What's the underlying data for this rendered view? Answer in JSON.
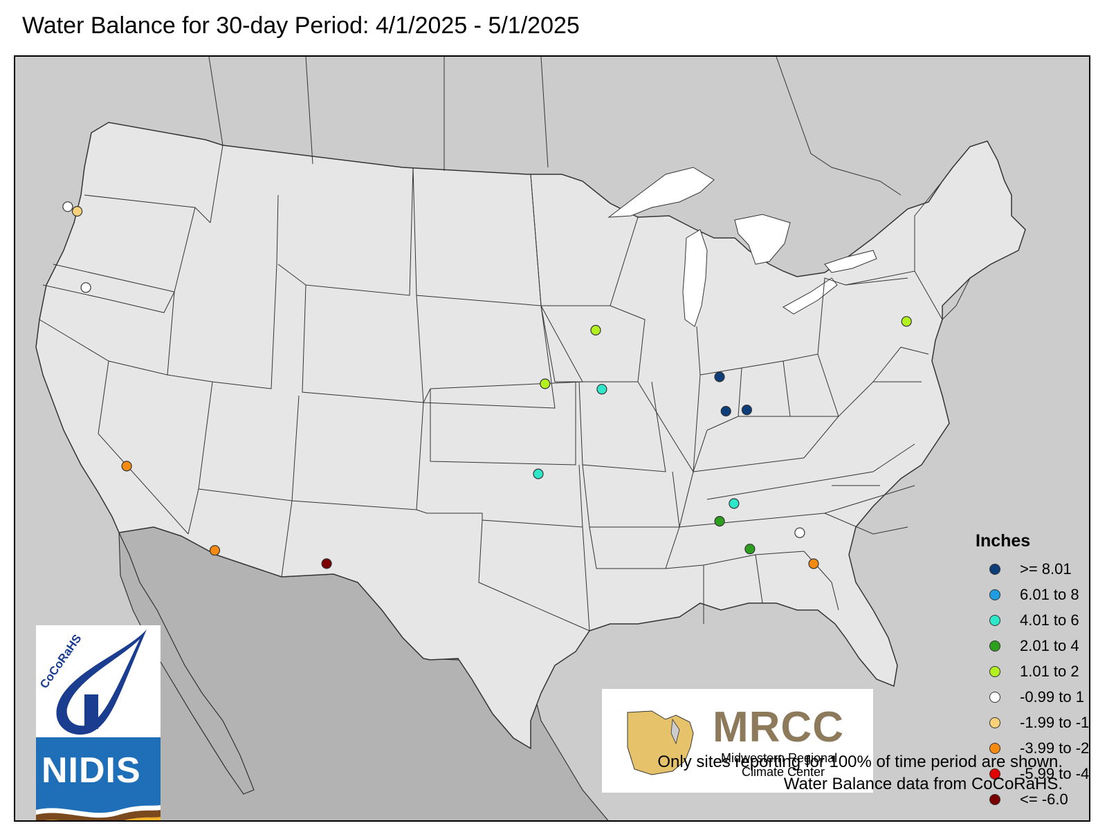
{
  "title": "Water Balance for 30-day Period: 4/1/2025 - 5/1/2025",
  "legend": {
    "title": "Inches",
    "items": [
      {
        "label": ">= 8.01",
        "color": "#0d3e7a"
      },
      {
        "label": "6.01 to 8",
        "color": "#1e9de0"
      },
      {
        "label": "4.01 to 6",
        "color": "#2ee6c8"
      },
      {
        "label": "2.01 to 4",
        "color": "#2e9e1e"
      },
      {
        "label": "1.01 to 2",
        "color": "#b3f020"
      },
      {
        "label": "-0.99 to 1",
        "color": "#ffffff"
      },
      {
        "label": "-1.99 to -1",
        "color": "#f8d27a"
      },
      {
        "label": "-3.99 to -2",
        "color": "#f58a12"
      },
      {
        "label": "-5.99 to -4",
        "color": "#e00000"
      },
      {
        "label": "<= -6.0",
        "color": "#7a0000"
      }
    ]
  },
  "sites": [
    {
      "lon": -122.84,
      "lat": 48.98,
      "category": "-0.99 to 1"
    },
    {
      "lon": -122.39,
      "lat": 48.72,
      "category": "-1.99 to -1"
    },
    {
      "lon": -122.69,
      "lat": 45.52,
      "category": "-0.99 to 1"
    },
    {
      "lon": -122.28,
      "lat": 37.87,
      "category": "-3.99 to -2"
    },
    {
      "lon": -117.86,
      "lat": 33.75,
      "category": "-3.99 to -2"
    },
    {
      "lon": -111.0,
      "lat": 32.55,
      "category": "<= -6.0"
    },
    {
      "lon": -97.05,
      "lat": 39.68,
      "category": "1.01 to 2"
    },
    {
      "lon": -94.12,
      "lat": 41.98,
      "category": "1.01 to 2"
    },
    {
      "lon": -93.68,
      "lat": 39.48,
      "category": "4.01 to 6"
    },
    {
      "lon": -97.47,
      "lat": 35.85,
      "category": "4.01 to 6"
    },
    {
      "lon": -86.78,
      "lat": 40.25,
      "category": ">= 8.01"
    },
    {
      "lon": -86.25,
      "lat": 38.82,
      "category": ">= 8.01"
    },
    {
      "lon": -85.02,
      "lat": 38.95,
      "category": ">= 8.01"
    },
    {
      "lon": -76.45,
      "lat": 43.45,
      "category": "1.01 to 2"
    },
    {
      "lon": -85.3,
      "lat": 34.95,
      "category": "4.01 to 6"
    },
    {
      "lon": -86.1,
      "lat": 34.15,
      "category": "2.01 to 4"
    },
    {
      "lon": -84.05,
      "lat": 33.1,
      "category": "2.01 to 4"
    },
    {
      "lon": -81.05,
      "lat": 34.02,
      "category": "-0.99 to 1"
    },
    {
      "lon": -79.95,
      "lat": 32.8,
      "category": "-3.99 to -2"
    }
  ],
  "logos": {
    "mrcc": {
      "name": "MRCC",
      "line1": "Midwestern Regional",
      "line2": "Climate Center"
    },
    "cocorahs": {
      "name": "CoCoRaHS"
    },
    "nidis": {
      "name": "NIDIS"
    }
  },
  "footnote": {
    "line1": "Only sites reporting for 100% of time period are shown.",
    "line2": "Water Balance data from CoCoRaHS."
  },
  "colors": {
    "us_fill": "#e6e6e6",
    "canada_fill": "#cccccc",
    "mexico_fill": "#b3b3b3",
    "water": "#ffffff",
    "boundary": "#333333"
  }
}
